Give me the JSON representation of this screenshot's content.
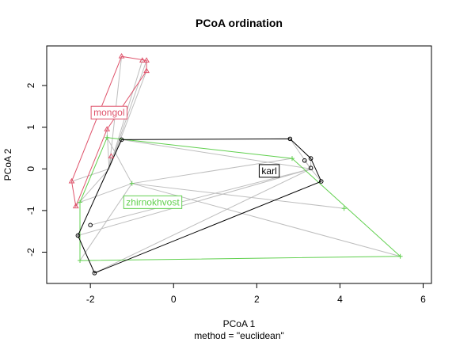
{
  "chart_data": {
    "type": "scatter",
    "title": "PCoA ordination",
    "xlabel": "PCoA 1",
    "sublabel": "method = \"euclidean\"",
    "ylabel": "PCoA 2",
    "xlim": [
      -3.05,
      6.2
    ],
    "ylim": [
      -2.75,
      2.95
    ],
    "xticks": [
      -2,
      0,
      2,
      4,
      6
    ],
    "yticks": [
      -2,
      -1,
      0,
      1,
      2
    ],
    "grid": false,
    "legend": "none",
    "groups": [
      {
        "name": "mongol",
        "color": "#DF536B",
        "pch": "triangle",
        "centroid": [
          -1.55,
          0.0
        ],
        "label_pos": [
          -1.55,
          1.35
        ],
        "points": [
          [
            -1.25,
            2.7
          ],
          [
            -0.75,
            2.6
          ],
          [
            -0.65,
            2.6
          ],
          [
            -0.65,
            2.35
          ],
          [
            -1.6,
            0.95
          ],
          [
            -1.5,
            0.3
          ],
          [
            -2.45,
            -0.3
          ],
          [
            -2.35,
            -0.9
          ]
        ],
        "hull": [
          [
            -1.25,
            2.7
          ],
          [
            -0.65,
            2.6
          ],
          [
            -0.65,
            2.35
          ],
          [
            -1.6,
            0.95
          ],
          [
            -2.35,
            -0.9
          ],
          [
            -2.45,
            -0.3
          ]
        ]
      },
      {
        "name": "zhirnokhvost",
        "color": "#61D04F",
        "pch": "plus",
        "centroid": [
          -1.0,
          -0.35
        ],
        "label_pos": [
          -0.5,
          -0.8
        ],
        "points": [
          [
            -1.6,
            0.75
          ],
          [
            -1.0,
            -0.35
          ],
          [
            -2.25,
            -0.8
          ],
          [
            2.85,
            0.25
          ],
          [
            4.1,
            -0.95
          ],
          [
            5.45,
            -2.1
          ],
          [
            -2.25,
            -2.2
          ]
        ],
        "hull": [
          [
            -1.6,
            0.75
          ],
          [
            2.85,
            0.25
          ],
          [
            5.45,
            -2.1
          ],
          [
            -2.25,
            -2.2
          ],
          [
            -2.25,
            -0.8
          ]
        ]
      },
      {
        "name": "karl",
        "color": "#000000",
        "pch": "circle",
        "centroid": [
          3.3,
          0.0
        ],
        "label_pos": [
          2.3,
          -0.05
        ],
        "points": [
          [
            -1.25,
            0.7
          ],
          [
            2.8,
            0.72
          ],
          [
            3.3,
            0.25
          ],
          [
            3.15,
            0.2
          ],
          [
            3.3,
            0.02
          ],
          [
            3.55,
            -0.3
          ],
          [
            -2.3,
            -1.6
          ],
          [
            -2.0,
            -1.35
          ],
          [
            -1.9,
            -2.5
          ]
        ],
        "hull": [
          [
            -1.25,
            0.7
          ],
          [
            2.8,
            0.72
          ],
          [
            3.3,
            0.25
          ],
          [
            3.55,
            -0.3
          ],
          [
            -1.9,
            -2.5
          ],
          [
            -2.3,
            -1.6
          ]
        ]
      }
    ]
  }
}
